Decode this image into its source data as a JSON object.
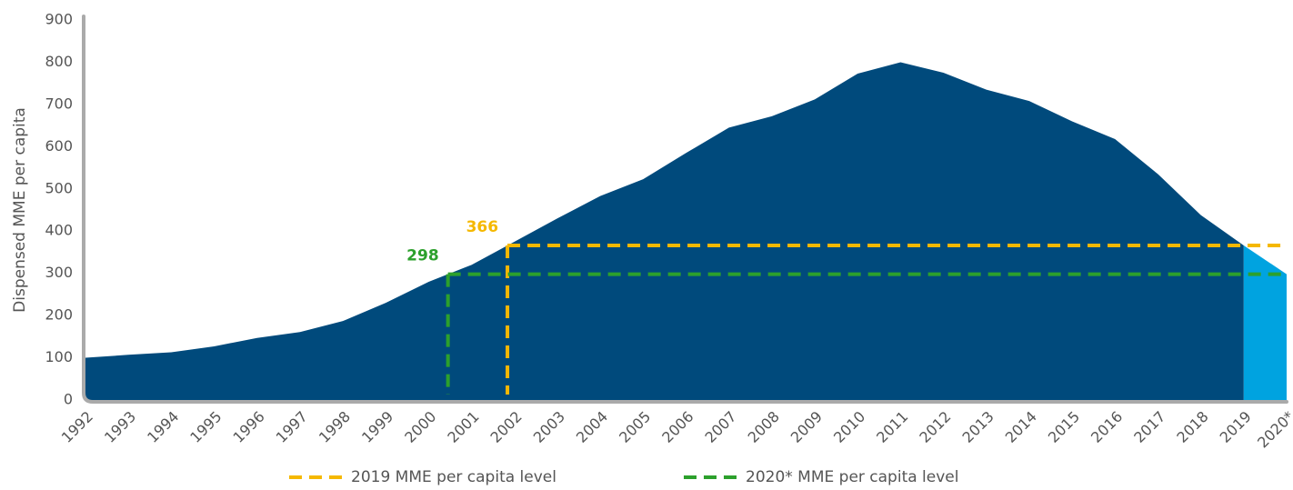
{
  "chart_data": {
    "type": "area",
    "y_label": "Dispensed MME per capita",
    "categories": [
      "1992",
      "1993",
      "1994",
      "1995",
      "1996",
      "1997",
      "1998",
      "1999",
      "2000",
      "2001",
      "2002",
      "2003",
      "2004",
      "2005",
      "2006",
      "2007",
      "2008",
      "2009",
      "2010",
      "2011",
      "2012",
      "2013",
      "2014",
      "2015",
      "2016",
      "2017",
      "2018",
      "2019",
      "2020*"
    ],
    "series": [
      {
        "color": "#004a7c",
        "highlight_color": "#00a3e0",
        "values": [
          100,
          107,
          113,
          127,
          147,
          161,
          187,
          230,
          280,
          320,
          375,
          430,
          483,
          523,
          585,
          645,
          672,
          712,
          773,
          800,
          775,
          735,
          708,
          660,
          618,
          535,
          438,
          366,
          298
        ]
      }
    ],
    "reference_lines": [
      {
        "name": "2019 MME per capita level",
        "value": 366,
        "color": "#f5b800"
      },
      {
        "name": "2020* MME per capita level",
        "value": 298,
        "color": "#2ca02c"
      }
    ],
    "ylim": [
      0,
      900
    ],
    "yticks": [
      0,
      100,
      200,
      300,
      400,
      500,
      600,
      700,
      800,
      900
    ]
  }
}
